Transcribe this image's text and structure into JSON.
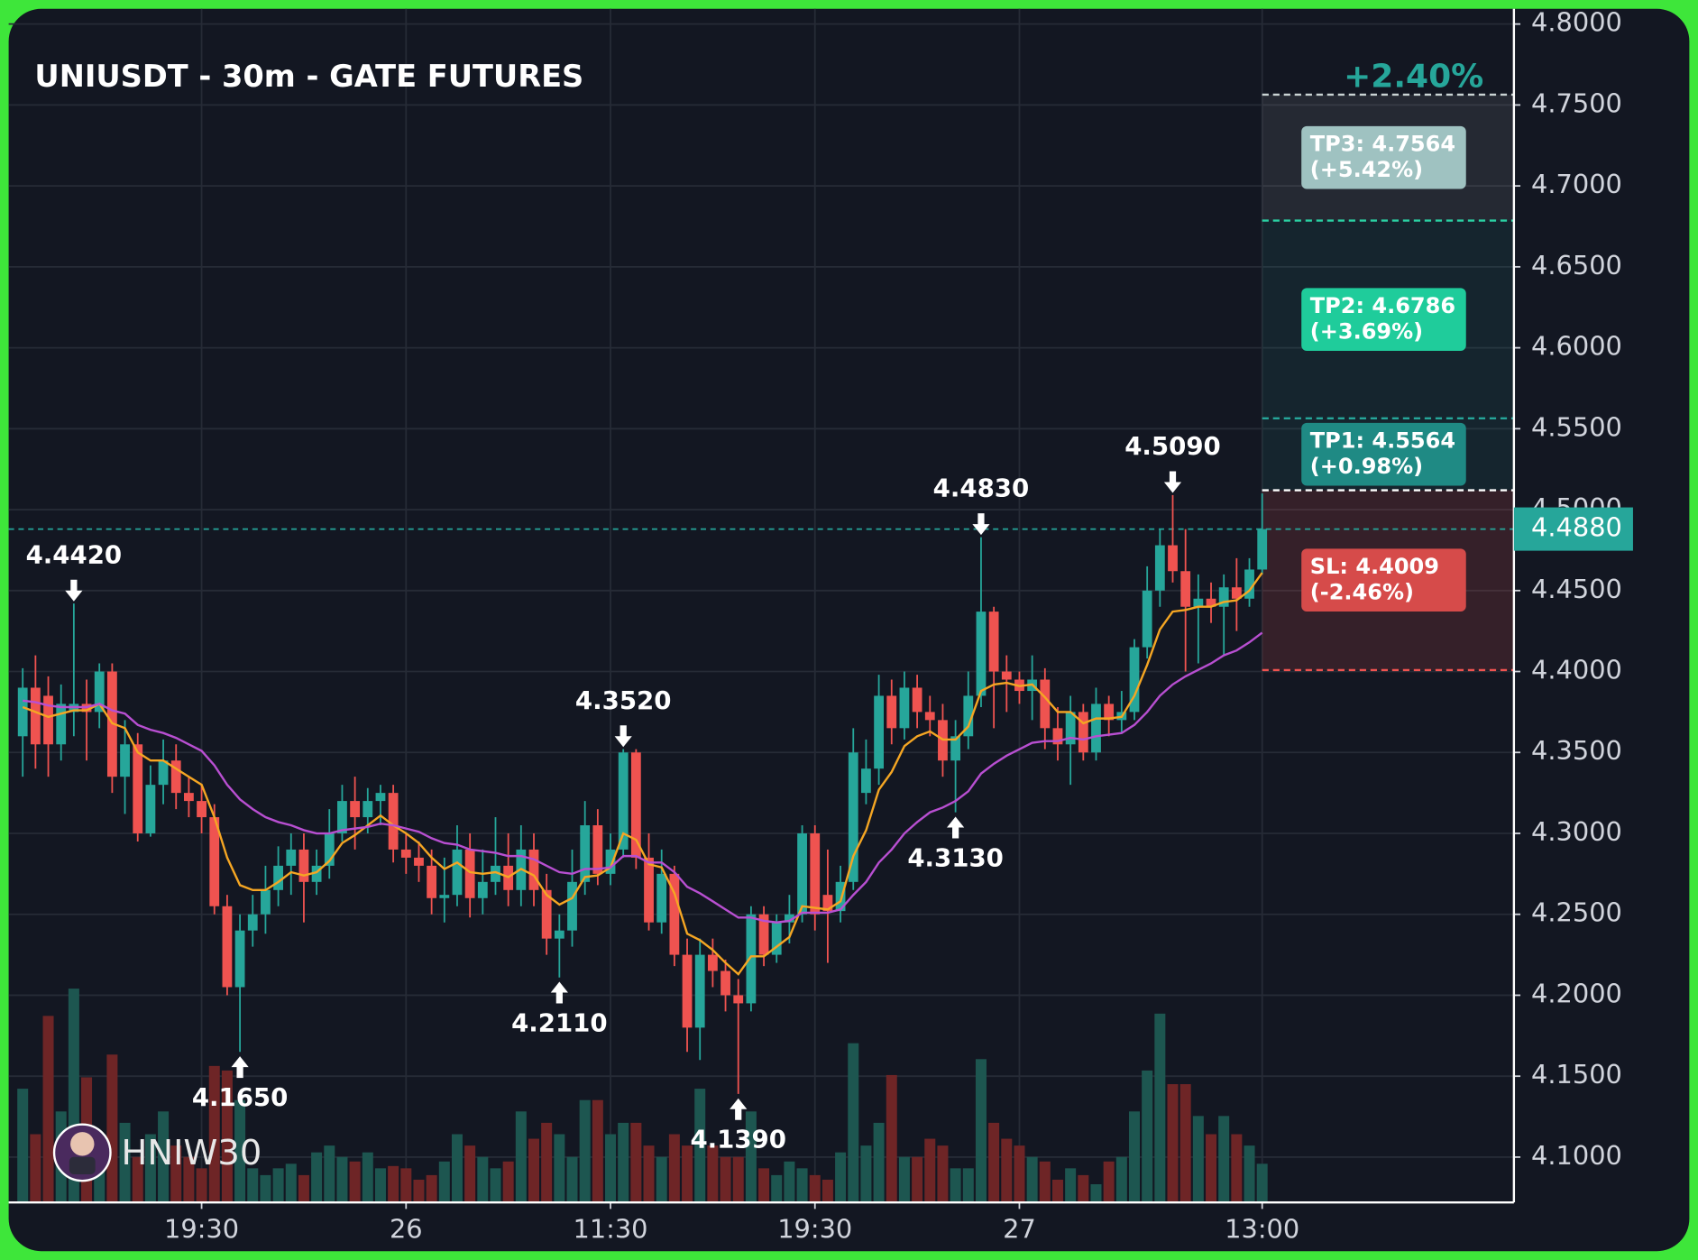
{
  "chart_data": {
    "type": "candlestick",
    "title": "UNIUSDT - 30m - GATE FUTURES",
    "change_label": "+2.40%",
    "watermark": "HNIW30",
    "up_color": "#26a69a",
    "down_color": "#ef5350",
    "grid": true,
    "xlim": [
      -1.1,
      116.7
    ],
    "ylim": [
      4.072,
      4.8094
    ],
    "xticks": [
      {
        "value": 14,
        "label": "19:30"
      },
      {
        "value": 30,
        "label": "26"
      },
      {
        "value": 46,
        "label": "11:30"
      },
      {
        "value": 62,
        "label": "19:30"
      },
      {
        "value": 78,
        "label": "27"
      },
      {
        "value": 97,
        "label": "13:00"
      }
    ],
    "yticks": [
      {
        "value": 4.1,
        "label": "4.1000"
      },
      {
        "value": 4.15,
        "label": "4.1500"
      },
      {
        "value": 4.2,
        "label": "4.2000"
      },
      {
        "value": 4.25,
        "label": "4.2500"
      },
      {
        "value": 4.3,
        "label": "4.3000"
      },
      {
        "value": 4.35,
        "label": "4.3500"
      },
      {
        "value": 4.4,
        "label": "4.4000"
      },
      {
        "value": 4.45,
        "label": "4.4500"
      },
      {
        "value": 4.5,
        "label": "4.5000"
      },
      {
        "value": 4.55,
        "label": "4.5500"
      },
      {
        "value": 4.6,
        "label": "4.6000"
      },
      {
        "value": 4.65,
        "label": "4.6500"
      },
      {
        "value": 4.7,
        "label": "4.7000"
      },
      {
        "value": 4.75,
        "label": "4.7500"
      },
      {
        "value": 4.8,
        "label": "4.8000"
      }
    ],
    "open": [
      4.36,
      4.39,
      4.385,
      4.355,
      4.375,
      4.38,
      4.375,
      4.4,
      4.335,
      4.355,
      4.3,
      4.33,
      4.345,
      4.325,
      4.32,
      4.31,
      4.255,
      4.205,
      4.24,
      4.25,
      4.265,
      4.28,
      4.29,
      4.27,
      4.28,
      4.3,
      4.32,
      4.31,
      4.32,
      4.325,
      4.29,
      4.285,
      4.28,
      4.26,
      4.262,
      4.29,
      4.26,
      4.27,
      4.28,
      4.265,
      4.29,
      4.265,
      4.235,
      4.24,
      4.27,
      4.305,
      4.275,
      4.29,
      4.35,
      4.285,
      4.245,
      4.275,
      4.225,
      4.18,
      4.225,
      4.215,
      4.2,
      4.195,
      4.25,
      4.225,
      4.245,
      4.25,
      4.3,
      4.262,
      4.252,
      4.27,
      4.325,
      4.34,
      4.385,
      4.365,
      4.39,
      4.375,
      4.37,
      4.345,
      4.36,
      4.385,
      4.437,
      4.4,
      4.395,
      4.388,
      4.395,
      4.365,
      4.355,
      4.375,
      4.35,
      4.38,
      4.37,
      4.375,
      4.415,
      4.45,
      4.478,
      4.462,
      4.44,
      4.445,
      4.44,
      4.452,
      4.445,
      4.463
    ],
    "high": [
      4.402,
      4.41,
      4.397,
      4.392,
      4.442,
      4.395,
      4.405,
      4.405,
      4.37,
      4.362,
      4.342,
      4.358,
      4.355,
      4.335,
      4.33,
      4.318,
      4.262,
      4.25,
      4.262,
      4.28,
      4.292,
      4.3,
      4.3,
      4.29,
      4.315,
      4.33,
      4.335,
      4.328,
      4.33,
      4.33,
      4.3,
      4.295,
      4.29,
      4.285,
      4.305,
      4.3,
      4.29,
      4.31,
      4.3,
      4.305,
      4.3,
      4.275,
      4.25,
      4.29,
      4.32,
      4.315,
      4.3,
      4.352,
      4.352,
      4.3,
      4.29,
      4.28,
      4.235,
      4.235,
      4.235,
      4.222,
      4.21,
      4.255,
      4.255,
      4.25,
      4.262,
      4.305,
      4.305,
      4.29,
      4.28,
      4.365,
      4.358,
      4.398,
      4.395,
      4.4,
      4.398,
      4.385,
      4.38,
      4.37,
      4.4,
      4.483,
      4.44,
      4.41,
      4.4,
      4.41,
      4.402,
      4.378,
      4.385,
      4.38,
      4.39,
      4.385,
      4.388,
      4.42,
      4.465,
      4.488,
      4.509,
      4.488,
      4.46,
      4.455,
      4.46,
      4.47,
      4.47,
      4.51
    ],
    "low": [
      4.335,
      4.34,
      4.335,
      4.345,
      4.36,
      4.345,
      4.365,
      4.325,
      4.312,
      4.295,
      4.298,
      4.318,
      4.315,
      4.31,
      4.3,
      4.25,
      4.2,
      4.165,
      4.23,
      4.238,
      4.255,
      4.262,
      4.245,
      4.262,
      4.272,
      4.295,
      4.29,
      4.3,
      4.305,
      4.282,
      4.275,
      4.27,
      4.25,
      4.245,
      4.255,
      4.248,
      4.25,
      4.262,
      4.255,
      4.255,
      4.255,
      4.225,
      4.211,
      4.23,
      4.262,
      4.268,
      4.268,
      4.285,
      4.278,
      4.24,
      4.238,
      4.218,
      4.165,
      4.16,
      4.205,
      4.19,
      4.139,
      4.19,
      4.218,
      4.22,
      4.232,
      4.245,
      4.24,
      4.22,
      4.245,
      4.265,
      4.318,
      4.33,
      4.355,
      4.358,
      4.365,
      4.36,
      4.335,
      4.313,
      4.352,
      4.378,
      4.365,
      4.375,
      4.38,
      4.37,
      4.352,
      4.345,
      4.33,
      4.345,
      4.345,
      4.36,
      4.362,
      4.37,
      4.408,
      4.44,
      4.455,
      4.4,
      4.405,
      4.43,
      4.41,
      4.425,
      4.44,
      4.46
    ],
    "close": [
      4.39,
      4.355,
      4.355,
      4.38,
      4.38,
      4.375,
      4.4,
      4.335,
      4.355,
      4.3,
      4.33,
      4.345,
      4.325,
      4.32,
      4.31,
      4.255,
      4.205,
      4.24,
      4.25,
      4.265,
      4.28,
      4.29,
      4.27,
      4.28,
      4.3,
      4.32,
      4.31,
      4.32,
      4.325,
      4.29,
      4.285,
      4.28,
      4.26,
      4.262,
      4.29,
      4.26,
      4.27,
      4.28,
      4.265,
      4.29,
      4.265,
      4.235,
      4.24,
      4.27,
      4.305,
      4.275,
      4.29,
      4.35,
      4.285,
      4.245,
      4.275,
      4.225,
      4.18,
      4.225,
      4.215,
      4.2,
      4.195,
      4.25,
      4.225,
      4.245,
      4.25,
      4.3,
      4.25,
      4.252,
      4.27,
      4.35,
      4.34,
      4.385,
      4.365,
      4.39,
      4.375,
      4.37,
      4.345,
      4.36,
      4.385,
      4.437,
      4.4,
      4.395,
      4.388,
      4.395,
      4.365,
      4.355,
      4.375,
      4.35,
      4.38,
      4.37,
      4.375,
      4.415,
      4.45,
      4.478,
      4.462,
      4.44,
      4.445,
      4.44,
      4.452,
      4.445,
      4.463,
      4.488
    ],
    "volume": {
      "vlim": [
        0,
        100
      ],
      "up_color": "#1d5650",
      "down_color": "#6e2526",
      "values": [
        50,
        30,
        82,
        40,
        94,
        55,
        25,
        65,
        35,
        20,
        30,
        40,
        25,
        20,
        15,
        60,
        58,
        45,
        15,
        12,
        15,
        17,
        12,
        22,
        25,
        20,
        18,
        22,
        15,
        16,
        15,
        10,
        12,
        18,
        30,
        25,
        20,
        15,
        18,
        40,
        28,
        35,
        30,
        20,
        45,
        45,
        30,
        35,
        35,
        25,
        20,
        30,
        25,
        50,
        25,
        20,
        20,
        40,
        15,
        12,
        18,
        15,
        12,
        10,
        22,
        70,
        25,
        35,
        56,
        20,
        20,
        28,
        25,
        15,
        15,
        63,
        35,
        28,
        25,
        20,
        18,
        10,
        15,
        12,
        8,
        18,
        20,
        40,
        58,
        83,
        52,
        52,
        38,
        30,
        38,
        30,
        25,
        17
      ]
    },
    "moving_averages": [
      {
        "color": "#f5a623",
        "values": [
          4.378,
          4.375,
          4.372,
          4.374,
          4.376,
          4.376,
          4.38,
          4.368,
          4.365,
          4.35,
          4.345,
          4.345,
          4.34,
          4.335,
          4.33,
          4.31,
          4.285,
          4.268,
          4.265,
          4.265,
          4.27,
          4.276,
          4.274,
          4.276,
          4.283,
          4.294,
          4.299,
          4.305,
          4.311,
          4.305,
          4.3,
          4.294,
          4.285,
          4.278,
          4.282,
          4.276,
          4.275,
          4.276,
          4.273,
          4.278,
          4.274,
          4.262,
          4.256,
          4.26,
          4.273,
          4.274,
          4.279,
          4.3,
          4.296,
          4.281,
          4.279,
          4.263,
          4.238,
          4.234,
          4.228,
          4.22,
          4.213,
          4.224,
          4.224,
          4.23,
          4.236,
          4.255,
          4.254,
          4.253,
          4.258,
          4.286,
          4.302,
          4.327,
          4.338,
          4.354,
          4.36,
          4.363,
          4.358,
          4.358,
          4.366,
          4.388,
          4.392,
          4.393,
          4.391,
          4.392,
          4.384,
          4.375,
          4.375,
          4.368,
          4.371,
          4.371,
          4.372,
          4.385,
          4.404,
          4.426,
          4.437,
          4.438,
          4.44,
          4.44,
          4.443,
          4.444,
          4.45,
          4.461
        ]
      },
      {
        "color": "#b84fd1",
        "values": [
          4.382,
          4.381,
          4.379,
          4.378,
          4.378,
          4.378,
          4.38,
          4.376,
          4.374,
          4.367,
          4.364,
          4.362,
          4.359,
          4.355,
          4.351,
          4.342,
          4.33,
          4.321,
          4.315,
          4.31,
          4.307,
          4.305,
          4.302,
          4.3,
          4.3,
          4.302,
          4.303,
          4.304,
          4.306,
          4.305,
          4.303,
          4.301,
          4.297,
          4.294,
          4.293,
          4.29,
          4.289,
          4.288,
          4.286,
          4.286,
          4.284,
          4.28,
          4.276,
          4.275,
          4.278,
          4.278,
          4.279,
          4.286,
          4.286,
          4.282,
          4.282,
          4.276,
          4.267,
          4.263,
          4.258,
          4.253,
          4.248,
          4.248,
          4.246,
          4.245,
          4.246,
          4.251,
          4.251,
          4.251,
          4.253,
          4.262,
          4.27,
          4.282,
          4.29,
          4.3,
          4.307,
          4.313,
          4.316,
          4.32,
          4.326,
          4.337,
          4.343,
          4.348,
          4.352,
          4.356,
          4.357,
          4.357,
          4.359,
          4.358,
          4.36,
          4.361,
          4.362,
          4.367,
          4.375,
          4.385,
          4.392,
          4.397,
          4.401,
          4.405,
          4.41,
          4.413,
          4.418,
          4.424
        ]
      }
    ],
    "annotations": [
      {
        "x": 4,
        "value": 4.442,
        "label": "4.4420",
        "side": "high"
      },
      {
        "x": 17,
        "value": 4.165,
        "label": "4.1650",
        "side": "low"
      },
      {
        "x": 42,
        "value": 4.211,
        "label": "4.2110",
        "side": "low"
      },
      {
        "x": 47,
        "value": 4.352,
        "label": "4.3520",
        "side": "high"
      },
      {
        "x": 56,
        "value": 4.139,
        "label": "4.1390",
        "side": "low"
      },
      {
        "x": 73,
        "value": 4.313,
        "label": "4.3130",
        "side": "low"
      },
      {
        "x": 75,
        "value": 4.483,
        "label": "4.4830",
        "side": "high"
      },
      {
        "x": 90,
        "value": 4.509,
        "label": "4.5090",
        "side": "high"
      }
    ],
    "entry": {
      "value": 4.512,
      "color": "#ffffff"
    },
    "levels": [
      {
        "value": 4.5564,
        "label": "TP1: 4.5564",
        "sublabel": "(+0.98%)",
        "color": "#26a69a",
        "box_color": "#1f8a84",
        "zone_color": "rgba(38,166,154,0.10)"
      },
      {
        "value": 4.6786,
        "label": "TP2: 4.6786",
        "sublabel": "(+3.69%)",
        "color": "#2ad1a3",
        "box_color": "#1fcc9b",
        "zone_color": "rgba(38,166,154,0.10)"
      },
      {
        "value": 4.7564,
        "label": "TP3: 4.7564",
        "sublabel": "(+5.42%)",
        "color": "#c9d3d3",
        "box_color": "#9fc2c1",
        "zone_color": "rgba(255,255,255,0.08)"
      },
      {
        "value": 4.4009,
        "label": "SL: 4.4009",
        "sublabel": "(-2.46%)",
        "color": "#ef5350",
        "box_color": "#d64b4a",
        "zone_color": "rgba(239,83,80,0.16)"
      }
    ],
    "last": {
      "value": 4.488,
      "label": "4.4880",
      "color": "#26a69a"
    }
  }
}
